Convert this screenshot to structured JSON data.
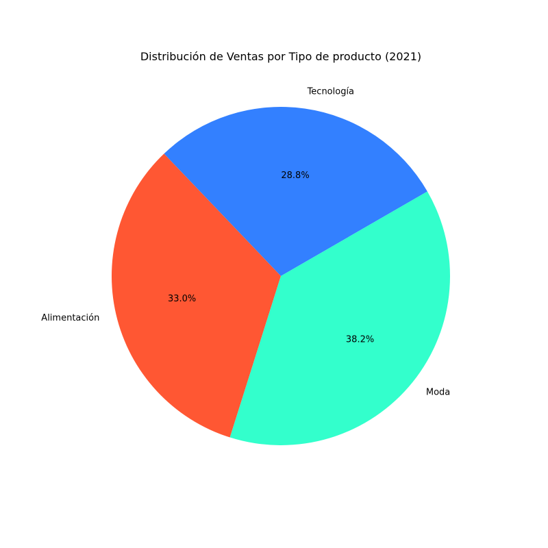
{
  "chart_data": {
    "type": "pie",
    "title": "Distribución de Ventas por Tipo de producto (2021)",
    "categories": [
      "Tecnología",
      "Alimentación",
      "Moda"
    ],
    "values": [
      28.8,
      33.0,
      38.2
    ],
    "percent_labels": [
      "28.8%",
      "33.0%",
      "38.2%"
    ],
    "colors": [
      "#3380ff",
      "#ff5733",
      "#33ffcc"
    ],
    "start_angle_deg": 30,
    "direction": "counterclockwise",
    "legend": "none"
  }
}
